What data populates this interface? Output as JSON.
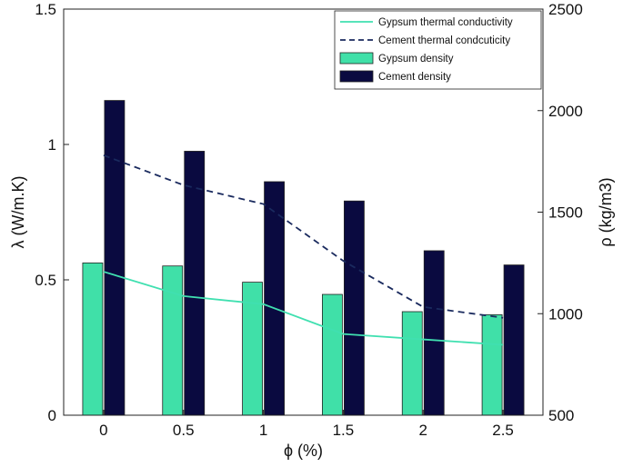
{
  "chart_data": {
    "type": "bar",
    "categories": [
      "0",
      "0.5",
      "1",
      "1.5",
      "2",
      "2.5"
    ],
    "x": [
      0,
      0.5,
      1,
      1.5,
      2,
      2.5
    ],
    "xlabel": "ϕ (%)",
    "ylabel_left": "λ (W/m.K)",
    "ylabel_right": "ρ (kg/m3)",
    "ylim_left": [
      0,
      1.5
    ],
    "ylim_right": [
      500,
      2500
    ],
    "yticks_left": [
      "0",
      "0.5",
      "1",
      "1.5"
    ],
    "yticks_right": [
      "500",
      "1000",
      "1500",
      "2000",
      "2500"
    ],
    "grid": false,
    "legend_position": "top-right",
    "series": [
      {
        "name": "Gypsum thermal conductivity",
        "kind": "line",
        "axis": "left",
        "color": "#40e0b0",
        "style": "solid",
        "values": [
          0.53,
          0.44,
          0.41,
          0.3,
          0.28,
          0.26
        ]
      },
      {
        "name": "Cement thermal condcuticity",
        "kind": "line",
        "axis": "left",
        "color": "#1a2a5e",
        "style": "dashed",
        "values": [
          0.96,
          0.85,
          0.78,
          0.57,
          0.4,
          0.36
        ]
      },
      {
        "name": "Gypsum density",
        "kind": "bar",
        "axis": "right",
        "color": "#40e0a8",
        "values": [
          1250,
          1235,
          1155,
          1095,
          1010,
          995
        ]
      },
      {
        "name": "Cement density",
        "kind": "bar",
        "axis": "right",
        "color": "#0a0a40",
        "values": [
          2050,
          1800,
          1650,
          1555,
          1310,
          1240
        ]
      }
    ]
  }
}
